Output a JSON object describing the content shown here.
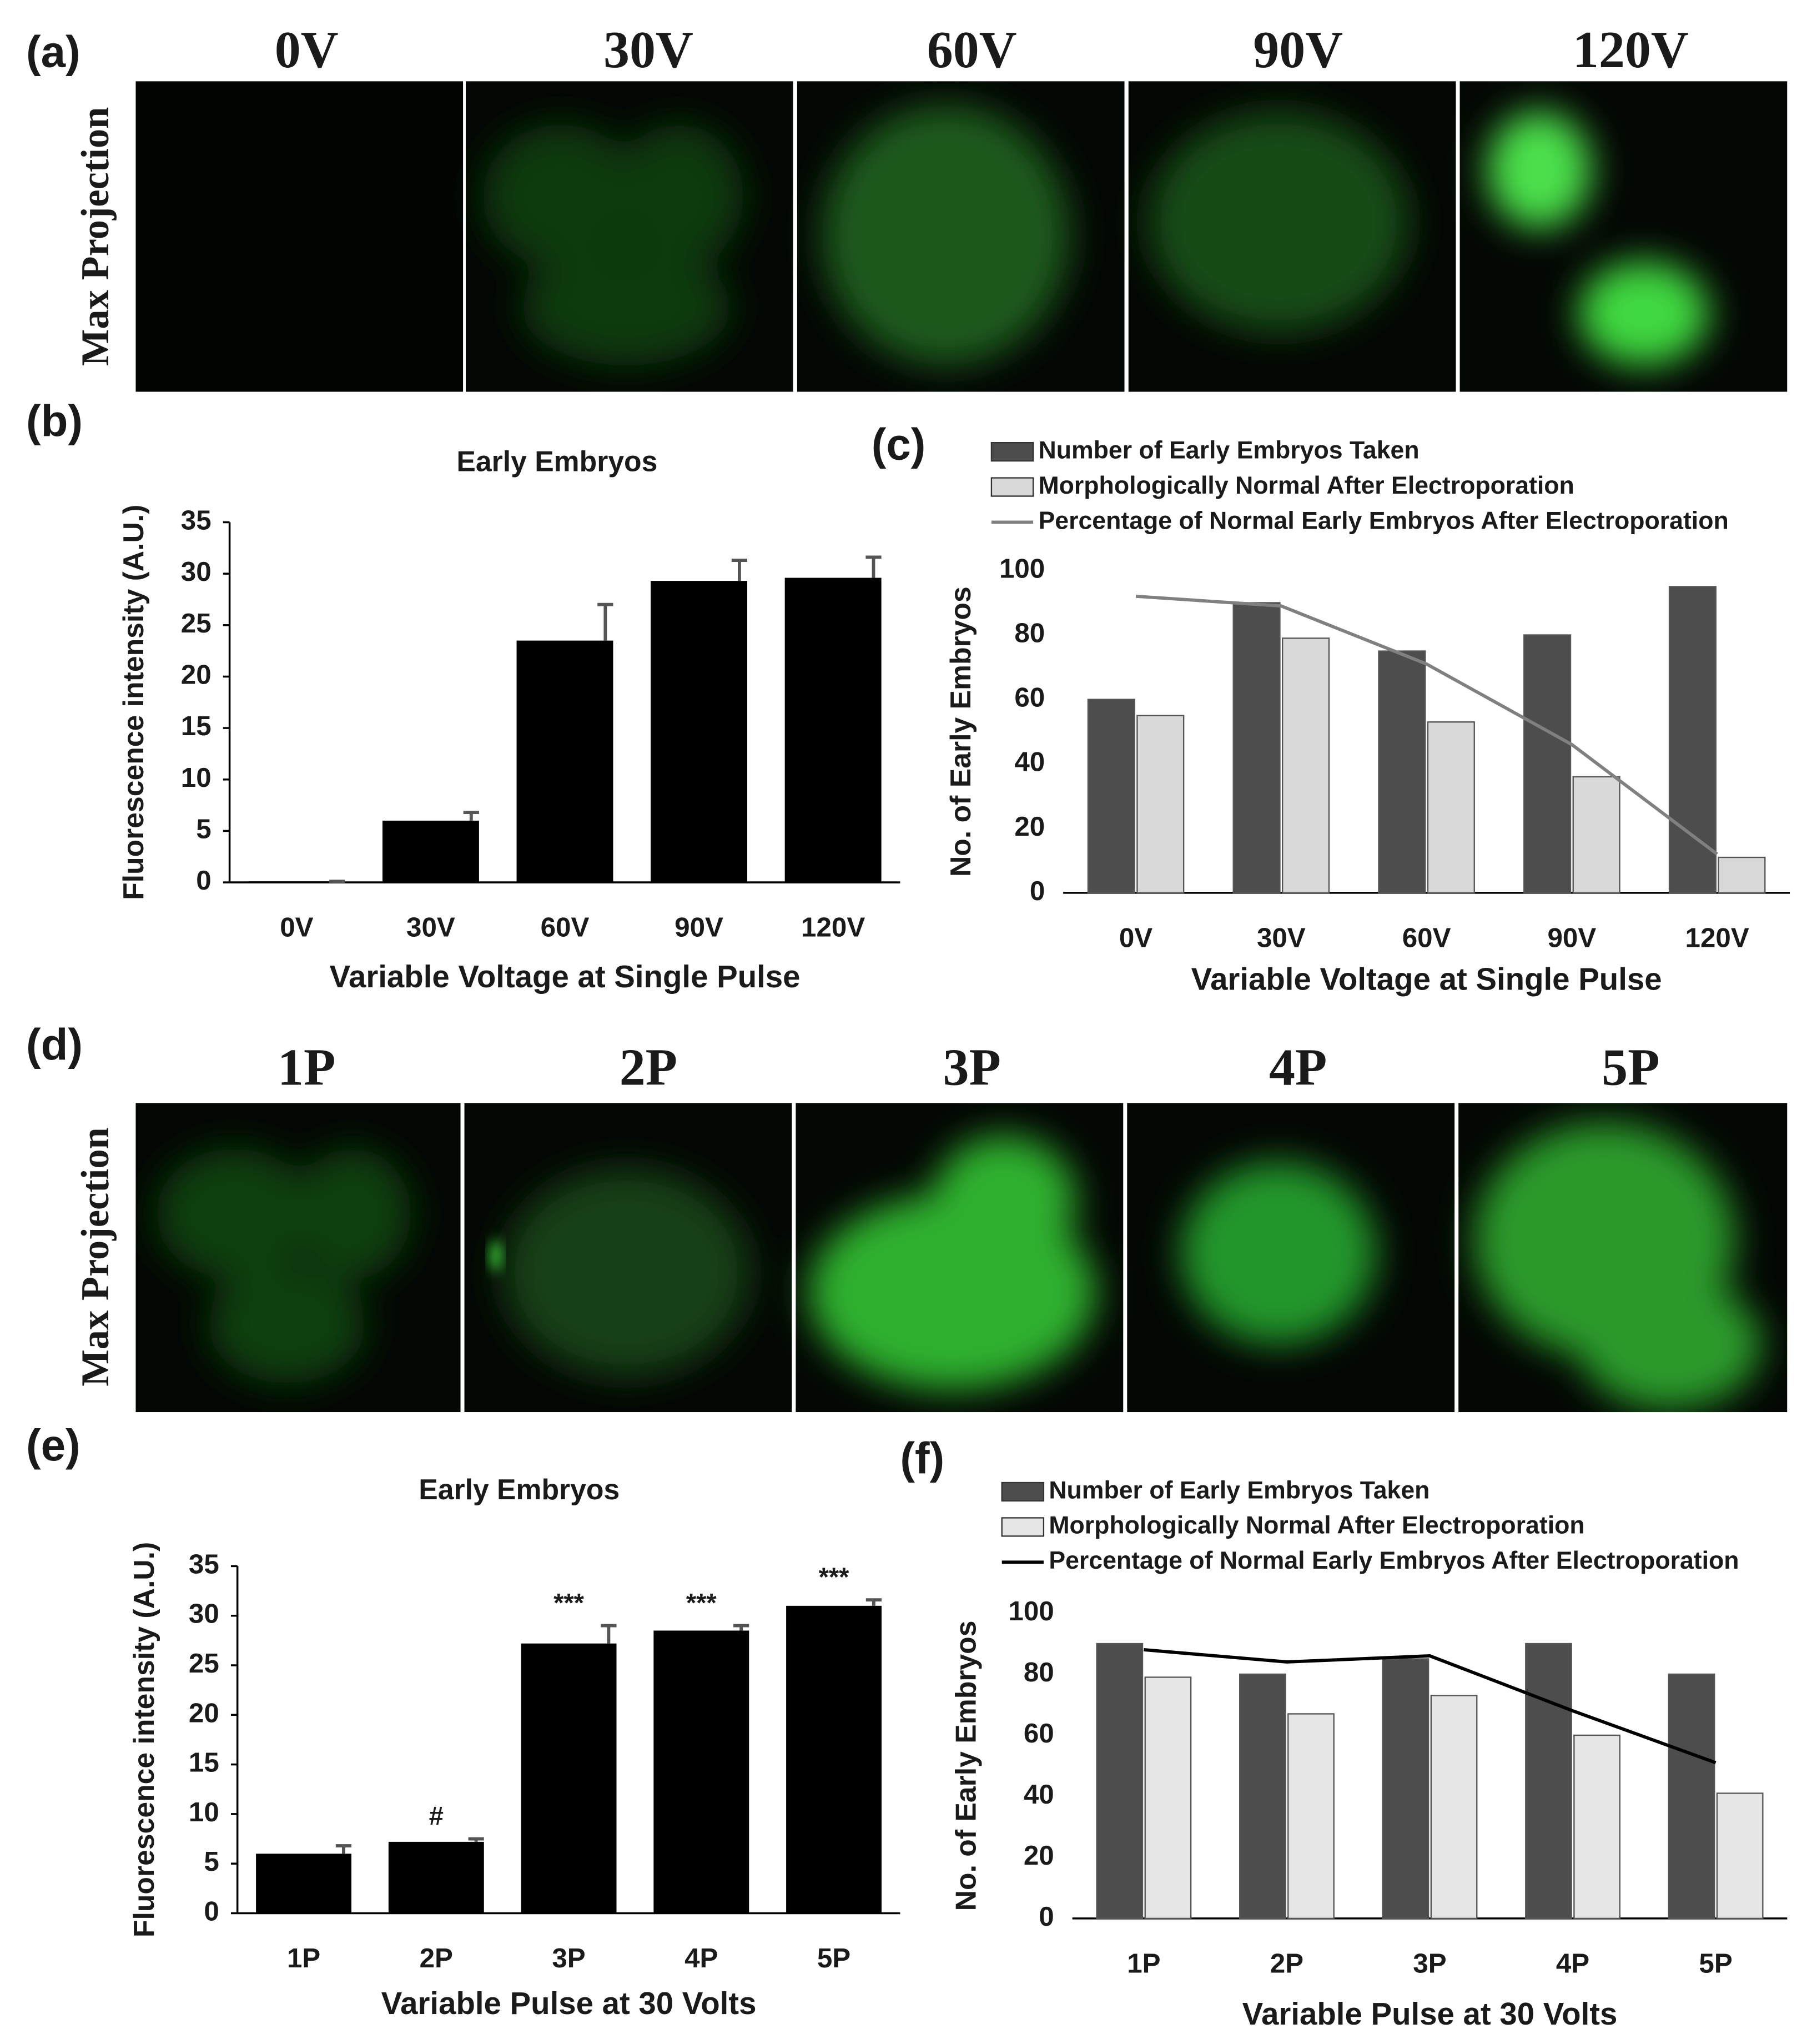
{
  "figure": {
    "panel_labels": [
      "(a)",
      "(b)",
      "(c)",
      "(d)",
      "(e)",
      "(f)"
    ],
    "image_rows": [
      {
        "ylabel": "Max Projection",
        "titles": [
          "0V",
          "30V",
          "60V",
          "90V",
          "120V"
        ]
      },
      {
        "ylabel": "Max Projection",
        "titles": [
          "1P",
          "2P",
          "3P",
          "4P",
          "5P"
        ]
      }
    ]
  },
  "chart_data": [
    {
      "type": "bar",
      "title": "Early Embryos",
      "color": "#000000",
      "categories": [
        "0V",
        "30V",
        "60V",
        "90V",
        "120V"
      ],
      "values": [
        0.1,
        6,
        23.5,
        29.3,
        29.6
      ],
      "errors": [
        0,
        0.8,
        3.5,
        2,
        2
      ],
      "ylim": [
        0,
        35
      ],
      "yticks": [
        0,
        5,
        10,
        15,
        20,
        25,
        30,
        35
      ],
      "xlabel": "Variable Voltage at Single Pulse",
      "ylabel": "Fluorescence intensity (A.U.)"
    },
    {
      "type": "combo",
      "categories": [
        "0V",
        "30V",
        "60V",
        "90V",
        "120V"
      ],
      "series": [
        {
          "name": "Number of Early Embryos Taken",
          "kind": "bar",
          "color": "#4d4d4d",
          "values": [
            60,
            90,
            75,
            80,
            95
          ]
        },
        {
          "name": "Morphologically Normal After Electroporation",
          "kind": "bar",
          "color": "#d9d9d9",
          "values": [
            55,
            79,
            53,
            36,
            11
          ]
        },
        {
          "name": "Percentage of Normal Early Embryos After Electroporation",
          "kind": "line",
          "color": "#808080",
          "values": [
            92,
            89,
            71,
            46,
            12
          ]
        }
      ],
      "ylim": [
        0,
        100
      ],
      "yticks": [
        0,
        20,
        40,
        60,
        80,
        100
      ],
      "xlabel": "Variable Voltage at Single Pulse",
      "ylabel": "No. of Early Embryos"
    },
    {
      "type": "bar",
      "title": "Early Embryos",
      "color": "#000000",
      "categories": [
        "1P",
        "2P",
        "3P",
        "4P",
        "5P"
      ],
      "values": [
        6,
        7.2,
        27.2,
        28.5,
        31
      ],
      "errors": [
        0.8,
        0.3,
        1.8,
        0.5,
        0.6
      ],
      "annotations": [
        {
          "category": "2P",
          "text": "#"
        },
        {
          "category": "3P",
          "text": "***"
        },
        {
          "category": "4P",
          "text": "***"
        },
        {
          "category": "5P",
          "text": "***"
        }
      ],
      "ylim": [
        0,
        35
      ],
      "yticks": [
        0,
        5,
        10,
        15,
        20,
        25,
        30,
        35
      ],
      "xlabel": "Variable Pulse at 30 Volts",
      "ylabel": "Fluorescence intensity (A.U.)"
    },
    {
      "type": "combo",
      "categories": [
        "1P",
        "2P",
        "3P",
        "4P",
        "5P"
      ],
      "series": [
        {
          "name": "Number of Early Embryos Taken",
          "kind": "bar",
          "color": "#4d4d4d",
          "values": [
            90,
            80,
            85,
            90,
            80
          ]
        },
        {
          "name": "Morphologically Normal After Electroporation",
          "kind": "bar",
          "color": "#e6e6e6",
          "values": [
            79,
            67,
            73,
            60,
            41
          ]
        },
        {
          "name": "Percentage of Normal Early Embryos After Electroporation",
          "kind": "line",
          "color": "#000000",
          "values": [
            88,
            84,
            86,
            68,
            51
          ]
        }
      ],
      "ylim": [
        0,
        100
      ],
      "yticks": [
        0,
        20,
        40,
        60,
        80,
        100
      ],
      "xlabel": "Variable Pulse at 30 Volts",
      "ylabel": "No. of Early Embryos"
    }
  ]
}
